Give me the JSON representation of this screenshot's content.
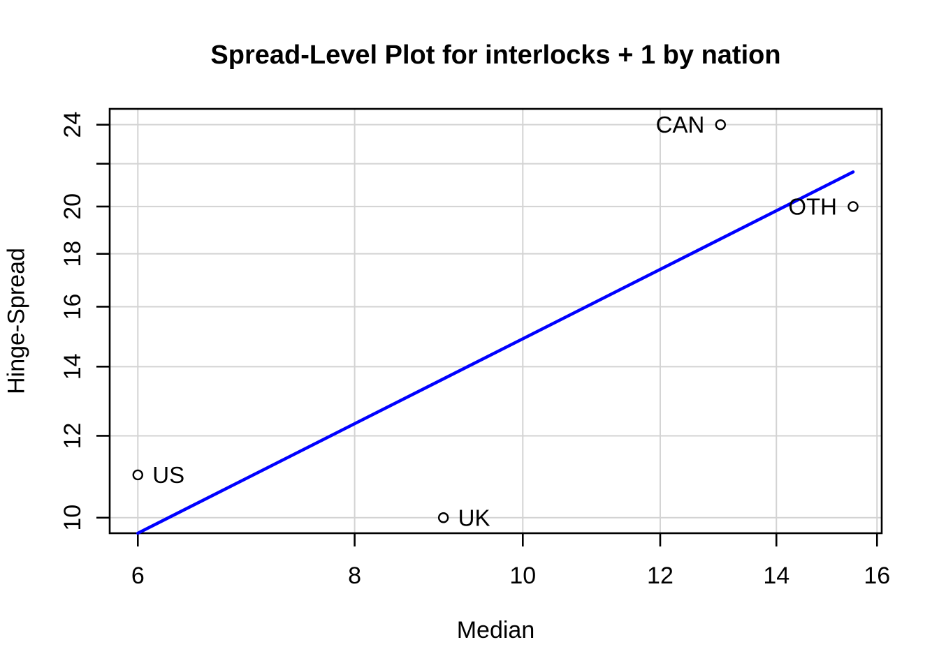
{
  "chart_data": {
    "type": "scatter",
    "title": "Spread-Level Plot for interlocks + 1 by nation",
    "xlabel": "Median",
    "ylabel": "Hinge-Spread",
    "x_scale": "log",
    "y_scale": "log",
    "xlim": [
      5.78,
      16.1
    ],
    "ylim": [
      9.66,
      24.86
    ],
    "grid": true,
    "x_ticks": [
      {
        "value": 6,
        "label": "6"
      },
      {
        "value": 8,
        "label": "8"
      },
      {
        "value": 10,
        "label": "10"
      },
      {
        "value": 12,
        "label": "12"
      },
      {
        "value": 14,
        "label": "14"
      },
      {
        "value": 16,
        "label": "16"
      }
    ],
    "y_ticks": [
      {
        "value": 10,
        "label": "10"
      },
      {
        "value": 12,
        "label": "12"
      },
      {
        "value": 14,
        "label": "14"
      },
      {
        "value": 16,
        "label": "16"
      },
      {
        "value": 18,
        "label": "18"
      },
      {
        "value": 20,
        "label": "20"
      },
      {
        "value": 22,
        "label": ""
      },
      {
        "value": 24,
        "label": "24"
      }
    ],
    "points": [
      {
        "label": "US",
        "x": 6,
        "y": 11,
        "label_side": "right"
      },
      {
        "label": "UK",
        "x": 9,
        "y": 10,
        "label_side": "right"
      },
      {
        "label": "CAN",
        "x": 13,
        "y": 24,
        "label_side": "left"
      },
      {
        "label": "OTH",
        "x": 15.5,
        "y": 20,
        "label_side": "left"
      }
    ],
    "fit_line": {
      "x1": 6,
      "y1": 9.66,
      "x2": 15.5,
      "y2": 21.6
    },
    "colors": {
      "fit_line": "#0000FF",
      "grid": "#D3D3D3",
      "axis": "#000000",
      "text": "#000000",
      "point_stroke": "#000000",
      "background": "#FFFFFF"
    }
  }
}
